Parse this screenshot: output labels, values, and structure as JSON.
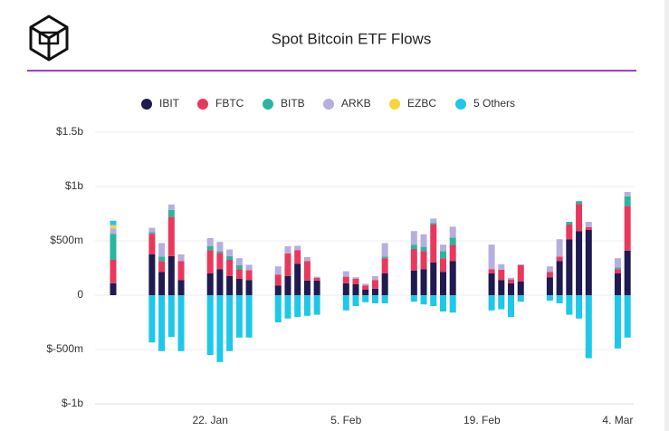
{
  "chart_data": {
    "type": "stacked_bar",
    "title": "Spot Bitcoin ETF Flows",
    "categories": [
      null,
      null,
      null,
      null,
      null,
      null,
      null,
      null,
      null,
      null,
      "22. Jan",
      null,
      null,
      null,
      null,
      null,
      null,
      null,
      null,
      null,
      null,
      null,
      null,
      null,
      "5. Feb",
      null,
      null,
      null,
      null,
      null,
      null,
      null,
      null,
      null,
      null,
      null,
      null,
      null,
      "19. Feb",
      null,
      null,
      null,
      null,
      null,
      null,
      null,
      null,
      null,
      null,
      null,
      null,
      null,
      "4. Mar",
      null
    ],
    "series": [
      {
        "name": "IBIT",
        "color": "#1f1a4f",
        "values": [
          110,
          null,
          null,
          null,
          375,
          215,
          360,
          140,
          null,
          null,
          200,
          240,
          175,
          150,
          140,
          null,
          null,
          90,
          175,
          290,
          135,
          135,
          null,
          null,
          110,
          100,
          50,
          60,
          200,
          null,
          null,
          225,
          240,
          300,
          215,
          315,
          null,
          null,
          null,
          200,
          140,
          110,
          125,
          null,
          null,
          165,
          315,
          515,
          590,
          600,
          null,
          null,
          200,
          410
        ]
      },
      {
        "name": "FBTC",
        "color": "#e8395c",
        "values": [
          215,
          null,
          null,
          null,
          190,
          100,
          360,
          175,
          null,
          null,
          215,
          150,
          150,
          90,
          90,
          null,
          null,
          100,
          210,
          125,
          180,
          25,
          null,
          null,
          60,
          50,
          40,
          80,
          140,
          null,
          null,
          200,
          165,
          350,
          125,
          150,
          null,
          null,
          null,
          40,
          95,
          35,
          150,
          null,
          null,
          50,
          40,
          135,
          250,
          25,
          null,
          null,
          40,
          410
        ]
      },
      {
        "name": "BITB",
        "color": "#2bb5a0",
        "values": [
          240,
          null,
          null,
          null,
          15,
          40,
          65,
          0,
          null,
          null,
          35,
          15,
          35,
          35,
          0,
          null,
          null,
          0,
          0,
          0,
          0,
          0,
          null,
          null,
          0,
          0,
          0,
          0,
          15,
          null,
          null,
          40,
          40,
          15,
          65,
          65,
          null,
          null,
          null,
          0,
          0,
          0,
          0,
          null,
          null,
          0,
          0,
          25,
          25,
          0,
          null,
          null,
          15,
          90
        ]
      },
      {
        "name": "ARKB",
        "color": "#b7aee0",
        "values": [
          50,
          null,
          null,
          null,
          40,
          125,
          50,
          60,
          null,
          null,
          75,
          85,
          60,
          65,
          50,
          null,
          null,
          75,
          65,
          40,
          35,
          10,
          null,
          null,
          50,
          15,
          15,
          35,
          125,
          null,
          null,
          125,
          115,
          40,
          60,
          100,
          null,
          null,
          null,
          225,
          50,
          15,
          10,
          null,
          null,
          50,
          160,
          0,
          0,
          50,
          null,
          null,
          85,
          40
        ]
      },
      {
        "name": "EZBC",
        "color": "#f9d43b",
        "values": [
          30,
          null,
          null,
          null,
          0,
          0,
          0,
          0,
          null,
          null,
          0,
          0,
          0,
          0,
          0,
          null,
          null,
          0,
          0,
          0,
          0,
          0,
          null,
          null,
          0,
          0,
          0,
          0,
          0,
          null,
          null,
          0,
          0,
          0,
          0,
          0,
          null,
          null,
          null,
          0,
          0,
          0,
          0,
          null,
          null,
          0,
          0,
          0,
          0,
          0,
          null,
          null,
          0,
          0
        ]
      },
      {
        "name": "5 Others",
        "color": "#1ec8e8",
        "values": [
          40,
          null,
          null,
          null,
          -435,
          -515,
          -385,
          -515,
          null,
          null,
          -550,
          -615,
          -515,
          -390,
          -390,
          null,
          null,
          -250,
          -215,
          -200,
          -190,
          -180,
          null,
          null,
          -140,
          -100,
          -65,
          -75,
          -75,
          null,
          null,
          -60,
          -85,
          -100,
          -150,
          -160,
          null,
          null,
          null,
          -140,
          -130,
          -200,
          -60,
          null,
          null,
          -50,
          -75,
          -180,
          -215,
          -580,
          null,
          null,
          -490,
          -390
        ]
      }
    ],
    "ylim": [
      -1000,
      1500
    ],
    "yticks": [
      {
        "value": -1000,
        "label": "$-1b"
      },
      {
        "value": -500,
        "label": "$-500m"
      },
      0,
      {
        "value": 500,
        "label": "$500m"
      },
      {
        "value": 1000,
        "label": "$1b"
      },
      {
        "value": 1500,
        "label": "$1.5b"
      }
    ],
    "grid": true
  }
}
